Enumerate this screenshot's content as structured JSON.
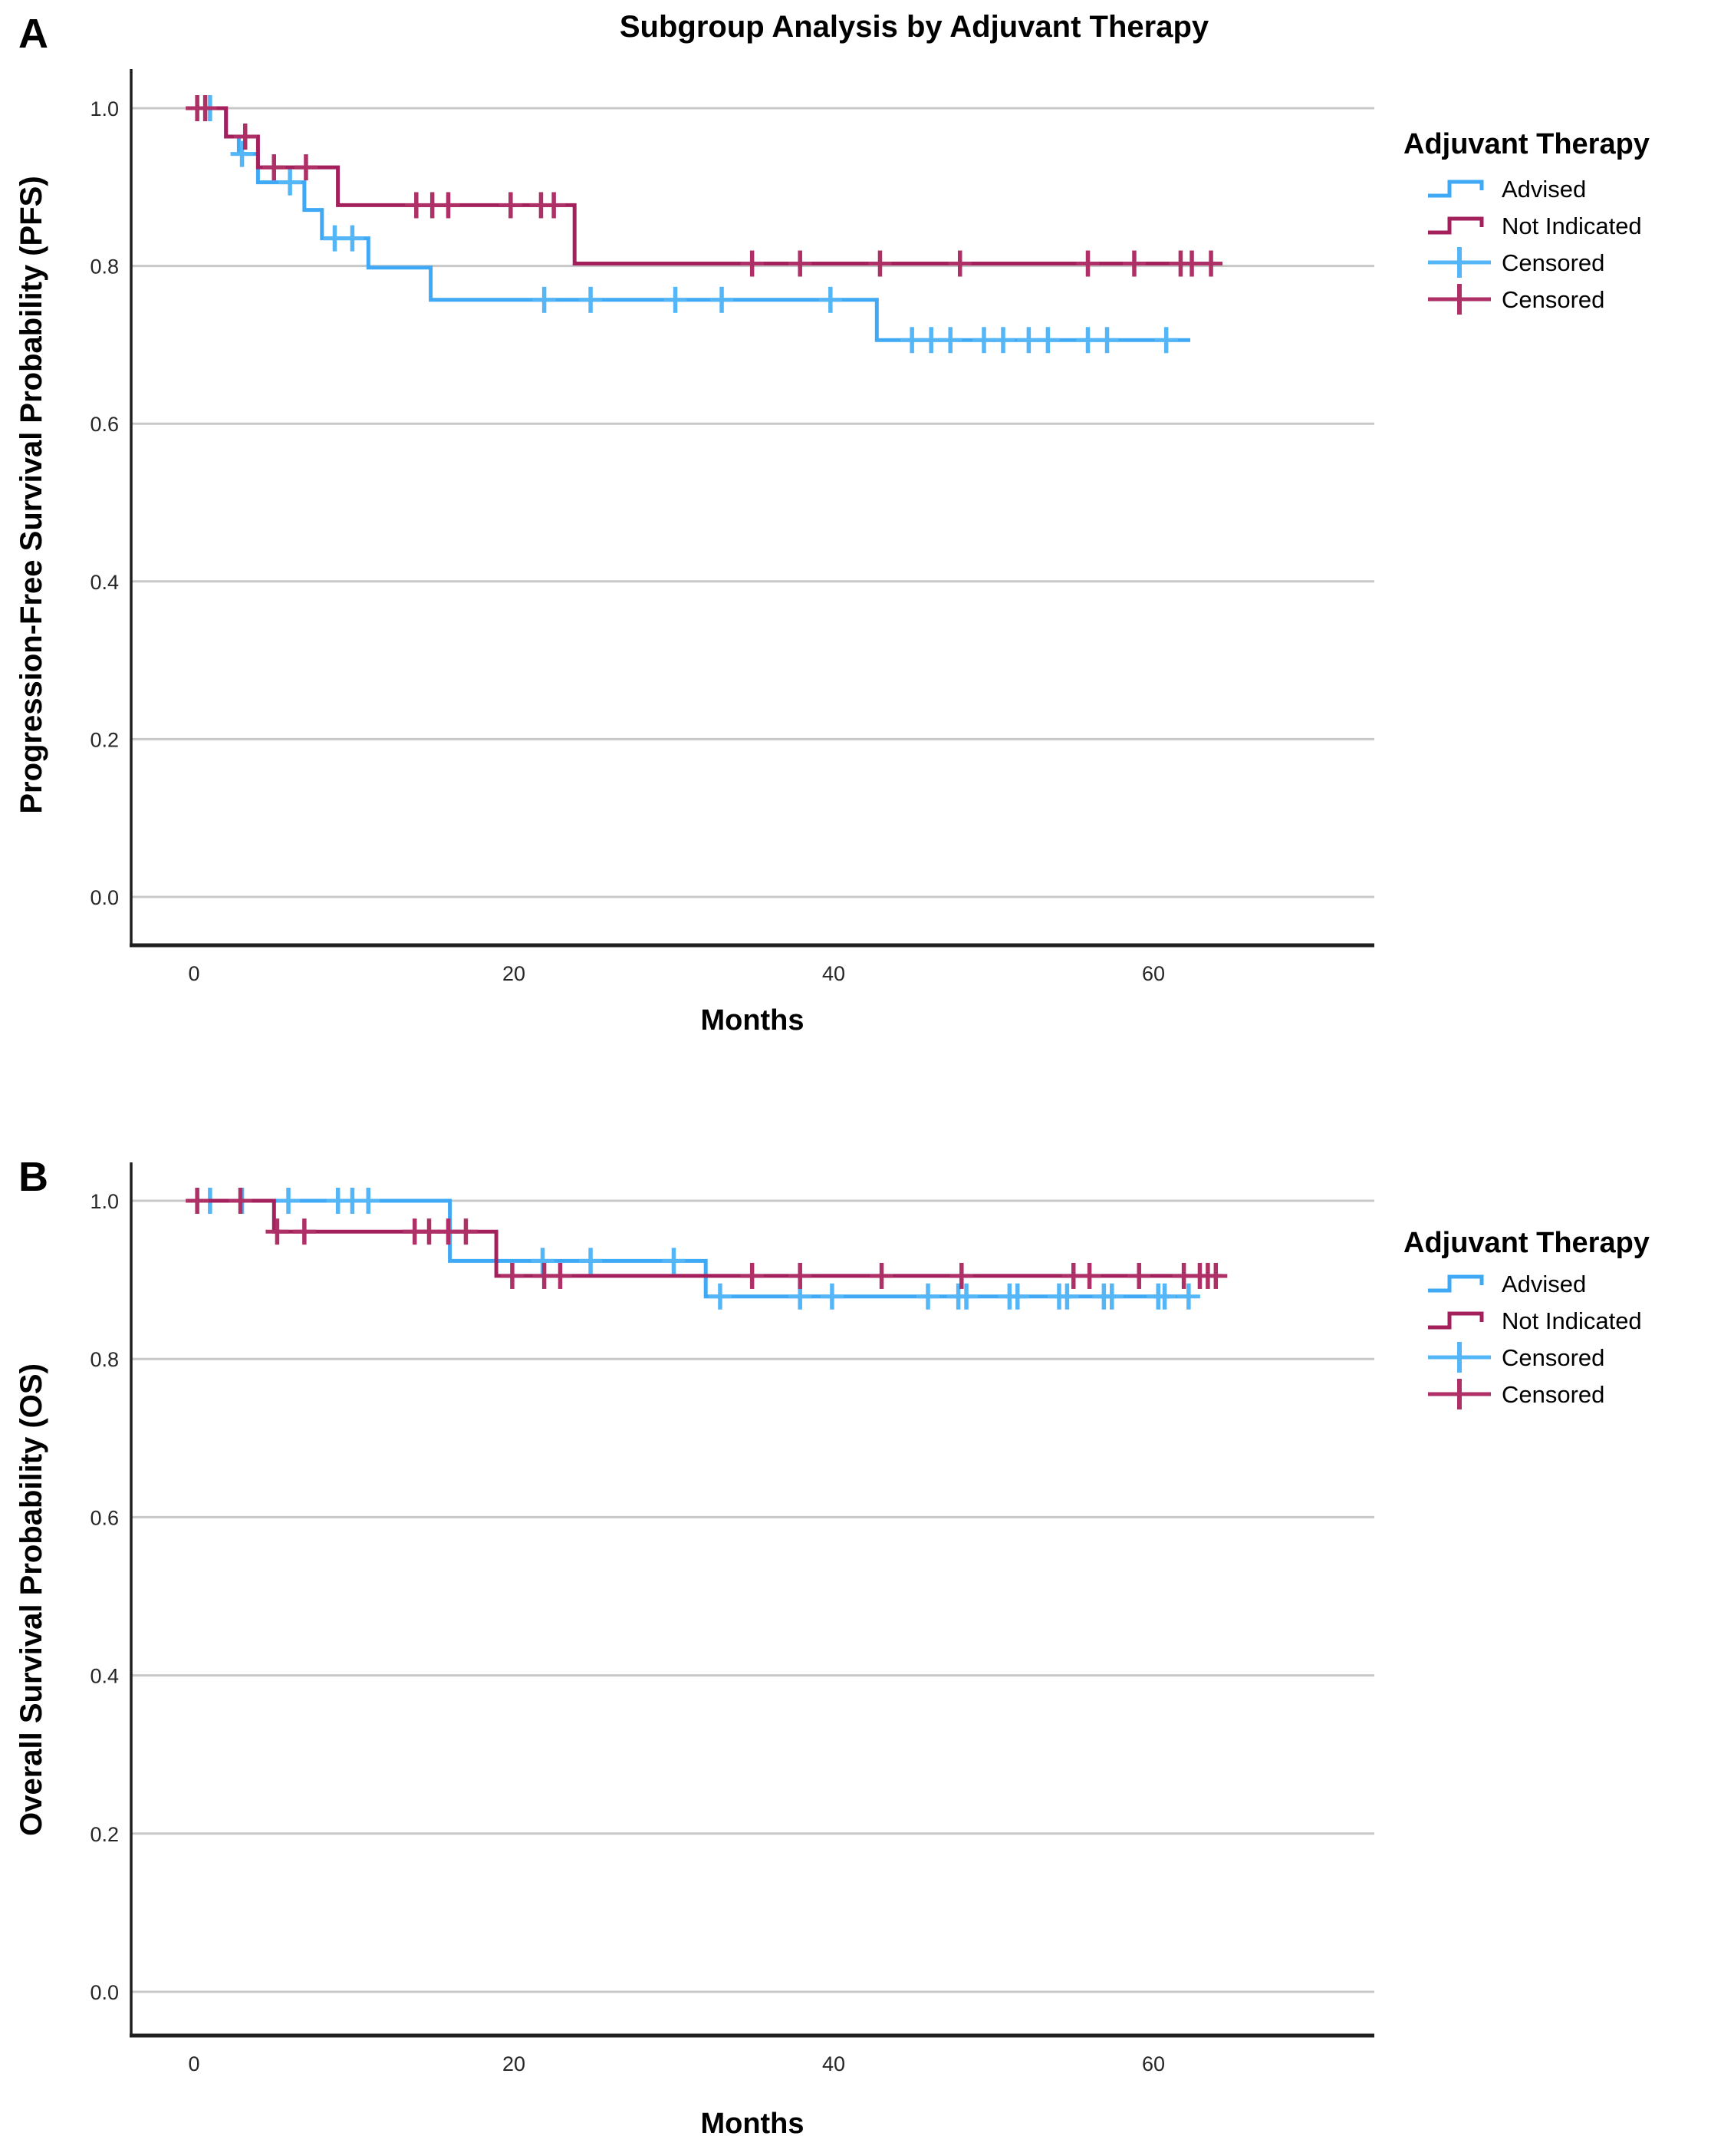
{
  "figure": {
    "panel_a_label": "A",
    "panel_b_label": "B",
    "background": "#FFFFFF"
  },
  "style": {
    "grid_color": "#C8C8C8",
    "axis_color": "#1F1F1F",
    "text_color": "#000000",
    "advised_color": "#3FA9F5",
    "advised_censor_color": "#55B6F7",
    "not_indicated_color": "#A3205C",
    "not_indicated_censor_color": "#AE3066"
  },
  "legend": {
    "title": "Adjuvant Therapy",
    "entries": [
      {
        "label": "Advised",
        "glyph": "step-line",
        "color": "#3FA9F5"
      },
      {
        "label": "Not Indicated",
        "glyph": "step-line",
        "color": "#A3205C"
      },
      {
        "label": "Censored",
        "glyph": "plus-mark",
        "color": "#55B6F7"
      },
      {
        "label": "Censored",
        "glyph": "plus-mark",
        "color": "#AE3066"
      }
    ]
  },
  "chart_data": [
    {
      "id": "A",
      "type": "line",
      "subtype": "kaplan-meier-step",
      "title": "Subgroup Analysis by Adjuvant Therapy",
      "xlabel": "Months",
      "ylabel": "Progression-Free Survival Probability (PFS)",
      "xticks": [
        0,
        20,
        40,
        60
      ],
      "yticks": [
        1.0,
        0.8,
        0.6,
        0.4,
        0.2,
        0.0
      ],
      "xlim": [
        -4,
        74
      ],
      "ylim": [
        -0.06,
        1.06
      ],
      "grid": "horizontal",
      "legend_position": "right",
      "series": [
        {
          "name": "Advised",
          "color": "#3FA9F5",
          "censor_color": "#55B6F7",
          "end_x": 62.3,
          "steps": [
            [
              0,
              1.0
            ],
            [
              2,
              0.964
            ],
            [
              2.8,
              0.942
            ],
            [
              4,
              0.906
            ],
            [
              6.9,
              0.871
            ],
            [
              8,
              0.835
            ],
            [
              10.9,
              0.798
            ],
            [
              14.8,
              0.757
            ],
            [
              42.7,
              0.706
            ]
          ],
          "censored": [
            [
              1.0,
              1.0
            ],
            [
              3.0,
              0.942
            ],
            [
              6.0,
              0.906
            ],
            [
              8.8,
              0.835
            ],
            [
              9.9,
              0.835
            ],
            [
              21.9,
              0.757
            ],
            [
              24.8,
              0.757
            ],
            [
              30.1,
              0.757
            ],
            [
              33.0,
              0.757
            ],
            [
              39.8,
              0.757
            ],
            [
              44.9,
              0.706
            ],
            [
              46.1,
              0.706
            ],
            [
              47.3,
              0.706
            ],
            [
              49.4,
              0.706
            ],
            [
              50.6,
              0.706
            ],
            [
              52.2,
              0.706
            ],
            [
              53.4,
              0.706
            ],
            [
              55.9,
              0.706
            ],
            [
              57.1,
              0.706
            ],
            [
              60.8,
              0.706
            ]
          ]
        },
        {
          "name": "Not Indicated",
          "color": "#A3205C",
          "censor_color": "#AE3066",
          "end_x": 64.3,
          "steps": [
            [
              0,
              1.0
            ],
            [
              2,
              0.964
            ],
            [
              4,
              0.925
            ],
            [
              9,
              0.877
            ],
            [
              23.8,
              0.803
            ]
          ],
          "censored": [
            [
              0.2,
              1.0
            ],
            [
              0.7,
              1.0
            ],
            [
              3.2,
              0.964
            ],
            [
              5.0,
              0.925
            ],
            [
              7.0,
              0.925
            ],
            [
              13.9,
              0.877
            ],
            [
              14.9,
              0.877
            ],
            [
              15.9,
              0.877
            ],
            [
              19.8,
              0.877
            ],
            [
              21.7,
              0.877
            ],
            [
              22.5,
              0.877
            ],
            [
              34.9,
              0.803
            ],
            [
              37.9,
              0.803
            ],
            [
              42.9,
              0.803
            ],
            [
              47.9,
              0.803
            ],
            [
              55.9,
              0.803
            ],
            [
              58.8,
              0.803
            ],
            [
              61.7,
              0.803
            ],
            [
              62.4,
              0.803
            ],
            [
              63.6,
              0.803
            ]
          ]
        }
      ]
    },
    {
      "id": "B",
      "type": "line",
      "subtype": "kaplan-meier-step",
      "title": "",
      "xlabel": "Months",
      "ylabel": "Overall Survival Probability (OS)",
      "xticks": [
        0,
        20,
        40,
        60
      ],
      "yticks": [
        1.0,
        0.8,
        0.6,
        0.4,
        0.2,
        0.0
      ],
      "xlim": [
        -4,
        74
      ],
      "ylim": [
        -0.06,
        1.06
      ],
      "grid": "horizontal",
      "legend_position": "right",
      "series": [
        {
          "name": "Advised",
          "color": "#3FA9F5",
          "censor_color": "#55B6F7",
          "end_x": 62.3,
          "steps": [
            [
              0,
              1.0
            ],
            [
              16,
              0.924
            ],
            [
              32,
              0.879
            ]
          ],
          "censored": [
            [
              1.0,
              1.0
            ],
            [
              3.0,
              1.0
            ],
            [
              5.9,
              1.0
            ],
            [
              9.0,
              1.0
            ],
            [
              9.9,
              1.0
            ],
            [
              10.9,
              1.0
            ],
            [
              21.8,
              0.924
            ],
            [
              24.8,
              0.924
            ],
            [
              30.0,
              0.924
            ],
            [
              32.9,
              0.879
            ],
            [
              37.9,
              0.879
            ],
            [
              39.9,
              0.879
            ],
            [
              45.9,
              0.879
            ],
            [
              47.8,
              0.879
            ],
            [
              48.3,
              0.879
            ],
            [
              51.0,
              0.879
            ],
            [
              51.5,
              0.879
            ],
            [
              54.1,
              0.879
            ],
            [
              54.6,
              0.879
            ],
            [
              56.9,
              0.879
            ],
            [
              57.4,
              0.879
            ],
            [
              60.3,
              0.879
            ],
            [
              60.7,
              0.879
            ],
            [
              62.2,
              0.879
            ]
          ]
        },
        {
          "name": "Not Indicated",
          "color": "#A3205C",
          "censor_color": "#AE3066",
          "end_x": 64.3,
          "steps": [
            [
              0,
              1.0
            ],
            [
              5.0,
              0.961
            ],
            [
              18.9,
              0.905
            ]
          ],
          "censored": [
            [
              0.2,
              1.0
            ],
            [
              2.9,
              1.0
            ],
            [
              5.2,
              0.961
            ],
            [
              6.9,
              0.961
            ],
            [
              13.8,
              0.961
            ],
            [
              14.7,
              0.961
            ],
            [
              15.9,
              0.961
            ],
            [
              17.0,
              0.961
            ],
            [
              19.9,
              0.905
            ],
            [
              21.9,
              0.905
            ],
            [
              22.9,
              0.905
            ],
            [
              34.9,
              0.905
            ],
            [
              37.9,
              0.905
            ],
            [
              43.0,
              0.905
            ],
            [
              48.0,
              0.905
            ],
            [
              55.0,
              0.905
            ],
            [
              56.0,
              0.905
            ],
            [
              59.1,
              0.905
            ],
            [
              61.9,
              0.905
            ],
            [
              62.9,
              0.905
            ],
            [
              63.4,
              0.905
            ],
            [
              63.9,
              0.905
            ]
          ]
        }
      ]
    }
  ]
}
